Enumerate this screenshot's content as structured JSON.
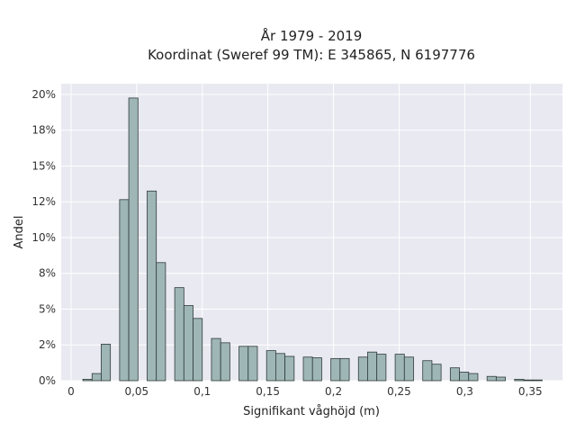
{
  "chart_data": {
    "type": "bar",
    "title_lines": [
      "År 1979 - 2019",
      "Koordinat (Sweref 99 TM): E 345865, N 6197776"
    ],
    "xlabel": "Signifikant våghöjd (m)",
    "ylabel": "Andel",
    "xlim": [
      -0.0075,
      0.3745
    ],
    "ylim": [
      0,
      0.2075
    ],
    "x_ticks": [
      0,
      0.05,
      0.1,
      0.15,
      0.2,
      0.25,
      0.3,
      0.35
    ],
    "x_tick_labels": [
      "0",
      "0,05",
      "0,1",
      "0,15",
      "0,2",
      "0,25",
      "0,3",
      "0,35"
    ],
    "y_ticks": [
      0,
      0.025,
      0.05,
      0.075,
      0.1,
      0.125,
      0.15,
      0.175,
      0.2
    ],
    "y_tick_labels": [
      "0%",
      "2%",
      "5%",
      "8%",
      "10%",
      "12%",
      "15%",
      "18%",
      "20%"
    ],
    "bin_width": 0.007,
    "bins": [
      {
        "x": 0.0125,
        "value": 0.001
      },
      {
        "x": 0.0195,
        "value": 0.005
      },
      {
        "x": 0.0265,
        "value": 0.0255
      },
      {
        "x": 0.0405,
        "value": 0.1265
      },
      {
        "x": 0.0475,
        "value": 0.1975
      },
      {
        "x": 0.0615,
        "value": 0.1325
      },
      {
        "x": 0.0685,
        "value": 0.0825
      },
      {
        "x": 0.0825,
        "value": 0.065
      },
      {
        "x": 0.0895,
        "value": 0.0525
      },
      {
        "x": 0.0965,
        "value": 0.0435
      },
      {
        "x": 0.1105,
        "value": 0.0295
      },
      {
        "x": 0.1175,
        "value": 0.0265
      },
      {
        "x": 0.1315,
        "value": 0.024
      },
      {
        "x": 0.1385,
        "value": 0.024
      },
      {
        "x": 0.1525,
        "value": 0.021
      },
      {
        "x": 0.1595,
        "value": 0.019
      },
      {
        "x": 0.1665,
        "value": 0.017
      },
      {
        "x": 0.1805,
        "value": 0.0165
      },
      {
        "x": 0.1875,
        "value": 0.016
      },
      {
        "x": 0.2015,
        "value": 0.0155
      },
      {
        "x": 0.2085,
        "value": 0.0155
      },
      {
        "x": 0.2225,
        "value": 0.0165
      },
      {
        "x": 0.2295,
        "value": 0.02
      },
      {
        "x": 0.2365,
        "value": 0.0185
      },
      {
        "x": 0.2505,
        "value": 0.0185
      },
      {
        "x": 0.2575,
        "value": 0.0165
      },
      {
        "x": 0.2715,
        "value": 0.014
      },
      {
        "x": 0.2785,
        "value": 0.0115
      },
      {
        "x": 0.2925,
        "value": 0.009
      },
      {
        "x": 0.2995,
        "value": 0.006
      },
      {
        "x": 0.3065,
        "value": 0.005
      },
      {
        "x": 0.3205,
        "value": 0.003
      },
      {
        "x": 0.3275,
        "value": 0.0025
      },
      {
        "x": 0.3415,
        "value": 0.001
      },
      {
        "x": 0.3485,
        "value": 0.0005
      },
      {
        "x": 0.3555,
        "value": 0.0005
      }
    ],
    "grid": true,
    "bar_color": "#9fb6b6",
    "bar_edge_color": "#2f3b3b",
    "plot_background": "#e9e9f1",
    "grid_color": "#ffffff"
  }
}
